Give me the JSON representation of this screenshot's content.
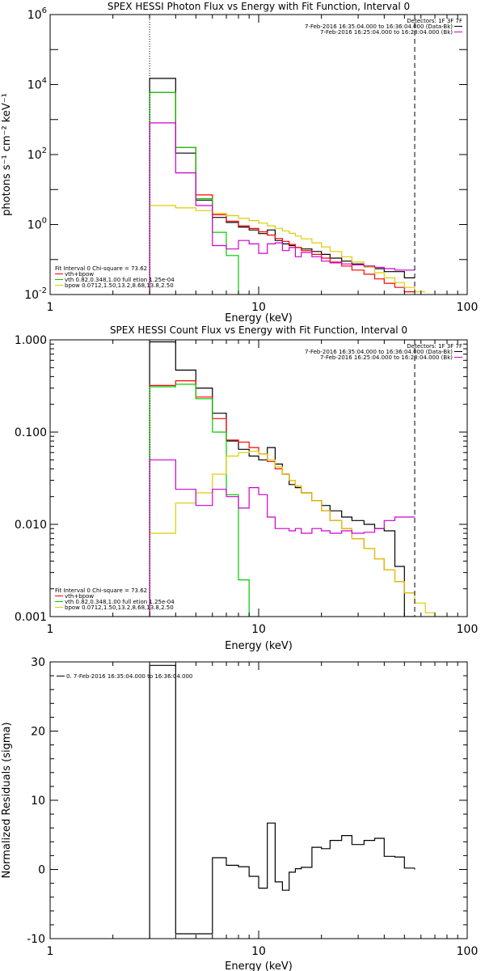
{
  "colors": {
    "total": "#000000",
    "fit_sum": "#ff0000",
    "vth": "#00cc00",
    "bpow": "#ddcc00",
    "background": "#cc00cc"
  },
  "chart_data": [
    {
      "type": "line",
      "title": "SPEX HESSI Photon Flux vs Energy with Fit Function, Interval 0",
      "xlabel": "Energy (keV)",
      "ylabel": "photons s⁻¹ cm⁻² keV⁻¹",
      "xscale": "log",
      "yscale": "log",
      "xlim": [
        1,
        100
      ],
      "ylim": [
        0.01,
        1000000
      ],
      "grid": false,
      "legend_top_right": {
        "header": "Detectors: 1F 3F 7F",
        "entries": [
          "7-Feb-2016 16:35:04.000 to 16:36:04.000 (Data-Bk)",
          "7-Feb-2016 16:25:04.000 to 16:28:04.000 (Bk)"
        ]
      },
      "legend_bottom_left": {
        "header": "Fit Interval 0   Chi-square = 73.62",
        "entries": [
          "vth+bpow",
          "vth 0.82,0.348,1.00  full etion 1.25e-04",
          "bpow 0.0712,1.50,13.2,8.68,13.8,2.50"
        ]
      },
      "edges": [
        3,
        4,
        5,
        6,
        7,
        8,
        9,
        10,
        11,
        12,
        13,
        14,
        15,
        16,
        18,
        20,
        22,
        25,
        28,
        32,
        36,
        40,
        45,
        50,
        56,
        63
      ],
      "series": [
        {
          "values": [
            15000,
            110,
            5,
            1.6,
            1.15,
            0.85,
            0.7,
            0.55,
            0.7,
            0.35,
            0.28,
            0.25,
            0.22,
            0.2,
            0.17,
            0.14,
            0.11,
            0.09,
            0.075,
            0.065,
            0.055,
            0.045,
            0.045,
            0.03
          ]
        },
        {
          "values": [
            6000,
            160,
            7,
            1.9,
            1.25,
            0.92,
            0.77,
            0.62,
            0.5,
            0.4,
            0.33,
            0.27,
            0.22,
            0.18,
            0.14,
            0.11,
            0.085,
            0.065,
            0.05,
            0.038,
            0.028,
            0.021,
            0.016,
            0.012
          ]
        },
        {
          "values": [
            6000,
            160,
            5.5,
            0.6,
            0.13,
            0.01
          ]
        },
        {
          "values": [
            3.5,
            3.0,
            2.5,
            2.1,
            1.8,
            1.5,
            1.3,
            1.1,
            0.92,
            0.78,
            0.66,
            0.56,
            0.47,
            0.39,
            0.3,
            0.23,
            0.17,
            0.12,
            0.085,
            0.06,
            0.042,
            0.03,
            0.022,
            0.016,
            0.012
          ]
        },
        {
          "values": [
            800,
            30,
            3.5,
            0.25,
            0.2,
            0.35,
            0.28,
            0.15,
            0.28,
            0.3,
            0.18,
            0.22,
            0.12,
            0.16,
            0.12,
            0.09,
            0.08,
            0.075,
            0.07,
            0.065,
            0.06,
            0.055,
            0.05,
            0.05
          ]
        }
      ],
      "markers": [
        {
          "x": 3,
          "style": "dotted"
        },
        {
          "x": 56,
          "style": "dashed"
        }
      ]
    },
    {
      "type": "line",
      "title": "SPEX HESSI Count Flux vs Energy with Fit Function, Interval 0",
      "xlabel": "Energy (keV)",
      "xscale": "log",
      "yscale": "log",
      "xlim": [
        1,
        100
      ],
      "ylim": [
        0.001,
        1
      ],
      "yticks": [
        "0.001",
        "0.010",
        "0.100",
        "1.000"
      ],
      "grid": false,
      "legend_top_right": {
        "header": "Detectors: 1F 3F 7F",
        "entries": [
          "7-Feb-2016 16:35:04.000 to 16:36:04.000 (Data-Bk)",
          "7-Feb-2016 16:25:04.000 to 16:28:04.000 (Bk)"
        ]
      },
      "legend_bottom_left": {
        "header": "Fit Interval 0   Chi-square = 73.62",
        "entries": [
          "vth+bpow",
          "vth 0.82,0.348,1.00  full etion 1.25e-04",
          "bpow 0.0712,1.50,13.2,8.68,13.8,2.50"
        ]
      },
      "edges": [
        3,
        4,
        5,
        6,
        7,
        8,
        9,
        10,
        11,
        12,
        13,
        14,
        15,
        16,
        18,
        20,
        22,
        25,
        28,
        32,
        36,
        40,
        45,
        50,
        56,
        63,
        70,
        80
      ],
      "series": [
        {
          "values": [
            0.95,
            0.47,
            0.3,
            0.16,
            0.08,
            0.065,
            0.055,
            0.05,
            0.068,
            0.045,
            0.035,
            0.027,
            0.025,
            0.022,
            0.018,
            0.016,
            0.014,
            0.012,
            0.011,
            0.01,
            0.009,
            0.0085,
            0.0035,
            0.001
          ]
        },
        {
          "values": [
            0.32,
            0.36,
            0.24,
            0.14,
            0.082,
            0.078,
            0.068,
            0.058,
            0.048,
            0.04,
            0.035,
            0.03,
            0.026,
            0.022,
            0.018,
            0.014,
            0.011,
            0.009,
            0.007,
            0.0055,
            0.0042,
            0.0032,
            0.0024,
            0.0018
          ]
        },
        {
          "values": [
            0.31,
            0.33,
            0.23,
            0.1,
            0.021,
            0.0025,
            0.001
          ]
        },
        {
          "values": [
            0.008,
            0.017,
            0.022,
            0.035,
            0.055,
            0.06,
            0.062,
            0.058,
            0.05,
            0.042,
            0.035,
            0.03,
            0.026,
            0.022,
            0.018,
            0.014,
            0.011,
            0.009,
            0.007,
            0.0055,
            0.0042,
            0.0032,
            0.0024,
            0.0018,
            0.0014,
            0.0011,
            0.0009
          ]
        },
        {
          "values": [
            0.05,
            0.024,
            0.016,
            0.024,
            0.02,
            0.015,
            0.025,
            0.021,
            0.012,
            0.009,
            0.009,
            0.0085,
            0.009,
            0.008,
            0.009,
            0.0085,
            0.008,
            0.0085,
            0.008,
            0.0082,
            0.009,
            0.011,
            0.012,
            0.012
          ]
        }
      ],
      "markers": [
        {
          "x": 3,
          "style": "dotted"
        },
        {
          "x": 56,
          "style": "dashed"
        }
      ]
    },
    {
      "type": "line",
      "xlabel": "Energy (keV)",
      "ylabel": "Normalized Residuals (sigma)",
      "xscale": "log",
      "xlim": [
        1,
        100
      ],
      "ylim": [
        -10,
        30
      ],
      "yticks": [
        "-10",
        "0",
        "10",
        "20",
        "30"
      ],
      "grid": false,
      "legend_top_left": {
        "entries": [
          "0.  7-Feb-2016 16:35:04.000 to 16:36:04.000"
        ]
      },
      "edges": [
        3,
        4,
        5,
        6,
        7,
        8,
        9,
        10,
        11,
        12,
        13,
        14,
        15,
        16,
        18,
        20,
        22,
        25,
        28,
        32,
        36,
        40,
        45,
        50,
        56
      ],
      "values": [
        29.5,
        -9.3,
        -9.3,
        1.7,
        0.6,
        0.4,
        -1.0,
        -2.7,
        6.7,
        -1.8,
        -3.0,
        -0.4,
        0.1,
        0.3,
        3.2,
        3.0,
        4.2,
        4.9,
        3.6,
        4.2,
        4.5,
        1.9,
        1.8,
        0.2
      ]
    }
  ]
}
